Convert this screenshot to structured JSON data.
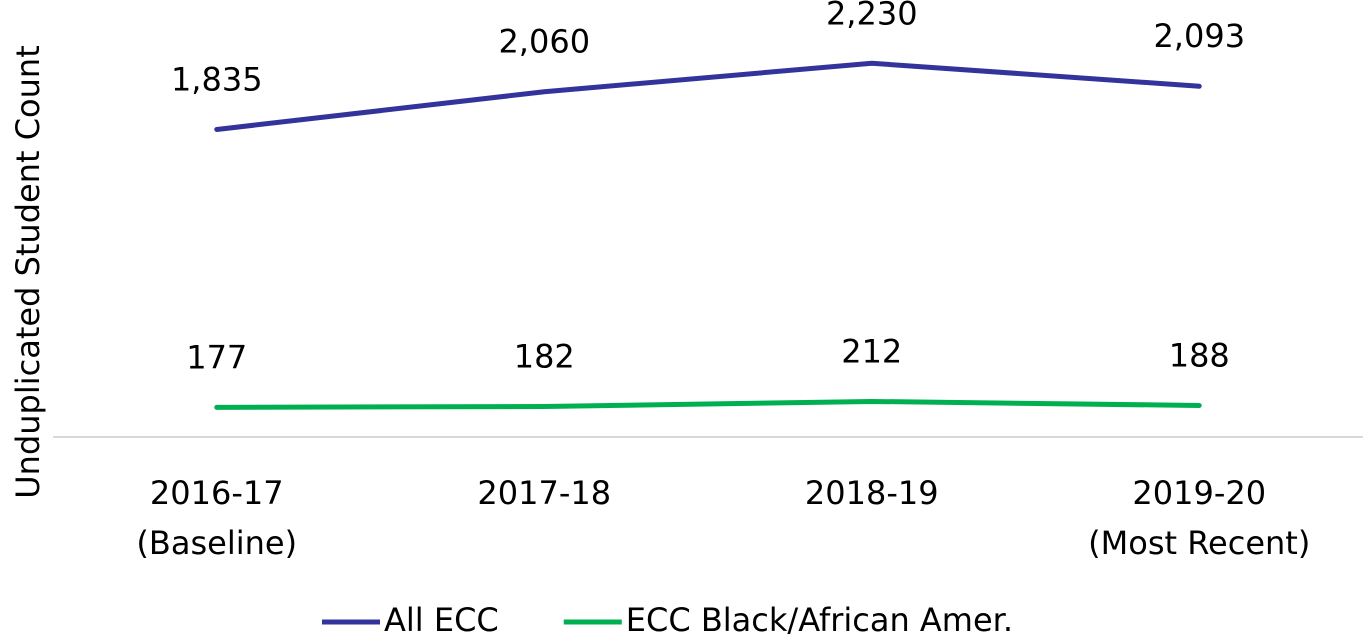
{
  "chart_data": {
    "type": "line",
    "y_label": "Unduplicated Student Count",
    "categories": [
      "2016-17\n(Baseline)",
      "2017-18",
      "2018-19",
      "2019-20\n(Most Recent)"
    ],
    "series": [
      {
        "name": "All ECC",
        "color": "#33339c",
        "values": [
          1835,
          2060,
          2230,
          2093
        ],
        "value_labels": [
          "1,835",
          "2,060",
          "2,230",
          "2,093"
        ]
      },
      {
        "name": "ECC Black/African Amer.",
        "color": "#00b050",
        "values": [
          177,
          182,
          212,
          188
        ]
      }
    ],
    "ylim": [
      0,
      2500
    ]
  }
}
